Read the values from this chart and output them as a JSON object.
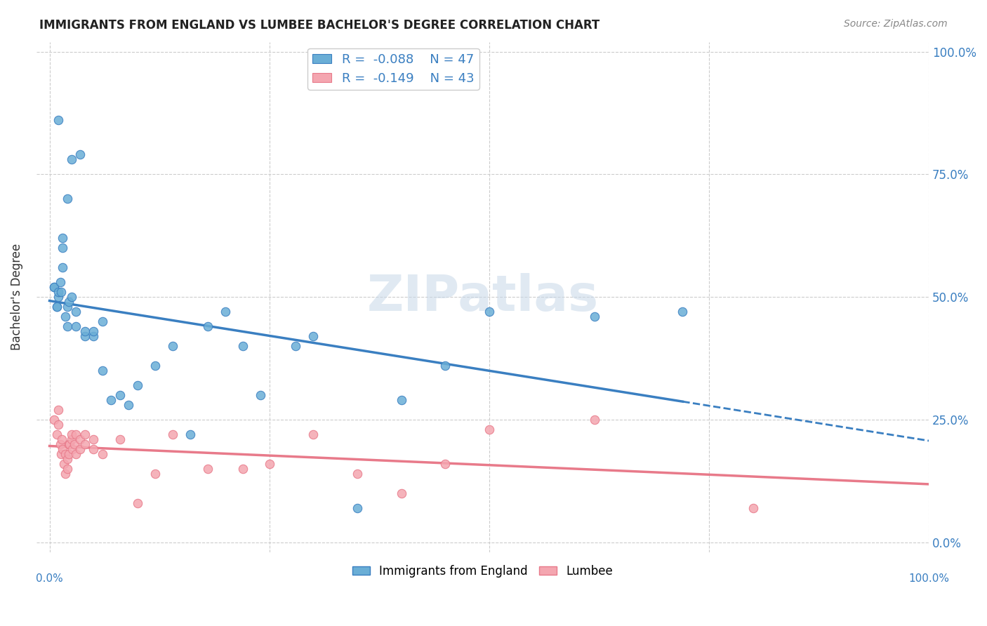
{
  "title": "IMMIGRANTS FROM ENGLAND VS LUMBEE BACHELOR'S DEGREE CORRELATION CHART",
  "source": "Source: ZipAtlas.com",
  "ylabel": "Bachelor's Degree",
  "ytick_labels": [
    "0.0%",
    "25.0%",
    "50.0%",
    "75.0%",
    "100.0%"
  ],
  "ytick_values": [
    0,
    0.25,
    0.5,
    0.75,
    1.0
  ],
  "legend_R1": "-0.088",
  "legend_N1": "47",
  "legend_R2": "-0.149",
  "legend_N2": "43",
  "color_england": "#6aaed6",
  "color_lumbee": "#f4a6b0",
  "color_england_line": "#3a7fc1",
  "color_lumbee_line": "#e87a8a",
  "watermark": "ZIPatlas",
  "england_x": [
    0.01,
    0.02,
    0.025,
    0.035,
    0.005,
    0.005,
    0.008,
    0.008,
    0.01,
    0.01,
    0.012,
    0.013,
    0.015,
    0.015,
    0.015,
    0.018,
    0.02,
    0.02,
    0.022,
    0.025,
    0.03,
    0.03,
    0.04,
    0.04,
    0.05,
    0.05,
    0.06,
    0.06,
    0.07,
    0.08,
    0.09,
    0.1,
    0.12,
    0.14,
    0.16,
    0.18,
    0.2,
    0.22,
    0.24,
    0.28,
    0.3,
    0.35,
    0.4,
    0.45,
    0.5,
    0.62,
    0.72
  ],
  "england_y": [
    0.86,
    0.7,
    0.78,
    0.79,
    0.52,
    0.52,
    0.48,
    0.48,
    0.5,
    0.51,
    0.53,
    0.51,
    0.56,
    0.6,
    0.62,
    0.46,
    0.44,
    0.48,
    0.49,
    0.5,
    0.44,
    0.47,
    0.42,
    0.43,
    0.42,
    0.43,
    0.35,
    0.45,
    0.29,
    0.3,
    0.28,
    0.32,
    0.36,
    0.4,
    0.22,
    0.44,
    0.47,
    0.4,
    0.3,
    0.4,
    0.42,
    0.07,
    0.29,
    0.36,
    0.47,
    0.46,
    0.47
  ],
  "lumbee_x": [
    0.005,
    0.008,
    0.01,
    0.01,
    0.012,
    0.013,
    0.014,
    0.015,
    0.016,
    0.018,
    0.018,
    0.02,
    0.02,
    0.022,
    0.022,
    0.023,
    0.025,
    0.025,
    0.026,
    0.028,
    0.03,
    0.03,
    0.035,
    0.035,
    0.04,
    0.04,
    0.05,
    0.05,
    0.06,
    0.08,
    0.1,
    0.12,
    0.14,
    0.18,
    0.22,
    0.25,
    0.3,
    0.35,
    0.4,
    0.45,
    0.5,
    0.62,
    0.8
  ],
  "lumbee_y": [
    0.25,
    0.22,
    0.24,
    0.27,
    0.2,
    0.18,
    0.21,
    0.19,
    0.16,
    0.14,
    0.18,
    0.15,
    0.17,
    0.18,
    0.2,
    0.2,
    0.21,
    0.22,
    0.19,
    0.2,
    0.18,
    0.22,
    0.19,
    0.21,
    0.2,
    0.22,
    0.19,
    0.21,
    0.18,
    0.21,
    0.08,
    0.14,
    0.22,
    0.15,
    0.15,
    0.16,
    0.22,
    0.14,
    0.1,
    0.16,
    0.23,
    0.25,
    0.07
  ]
}
